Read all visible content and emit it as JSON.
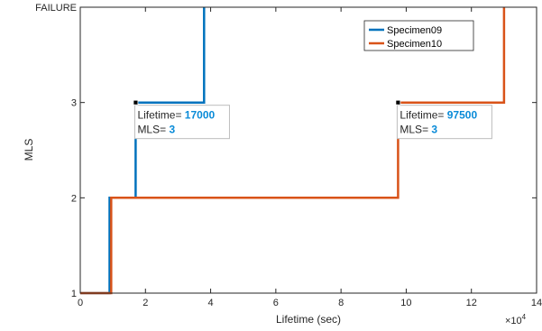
{
  "chart_data": {
    "type": "line",
    "xlabel": "Lifetime (sec)",
    "ylabel": "MLS",
    "x_exponent_label": "×10",
    "x_exponent_power": "4",
    "xlim": [
      0,
      140000
    ],
    "ylim": [
      1,
      4
    ],
    "x_ticks": [
      0,
      20000,
      40000,
      60000,
      80000,
      100000,
      120000,
      140000
    ],
    "x_tick_labels": [
      "0",
      "2",
      "4",
      "6",
      "8",
      "10",
      "12",
      "14"
    ],
    "y_ticks": [
      1,
      2,
      3,
      4
    ],
    "y_tick_labels": [
      "1",
      "2",
      "3",
      "FAILURE"
    ],
    "grid": false,
    "legend_position": "top-right",
    "series": [
      {
        "name": "Specimen09",
        "color": "#0072BD",
        "x": [
          0,
          9000,
          9000,
          17000,
          17000,
          38000,
          38000
        ],
        "y": [
          1,
          1,
          2,
          2,
          3,
          3,
          4
        ]
      },
      {
        "name": "Specimen10",
        "color": "#D95319",
        "x": [
          0,
          9500,
          9500,
          97500,
          97500,
          130000,
          130000
        ],
        "y": [
          1,
          1,
          2,
          2,
          3,
          3,
          4
        ]
      }
    ],
    "datatips": [
      {
        "x_label": "Lifetime=",
        "x_value": "17000",
        "y_label": "MLS=",
        "y_value": "3",
        "x": 17000,
        "y": 3
      },
      {
        "x_label": "Lifetime=",
        "x_value": "97500",
        "y_label": "MLS=",
        "y_value": "3",
        "x": 97500,
        "y": 3
      }
    ]
  }
}
